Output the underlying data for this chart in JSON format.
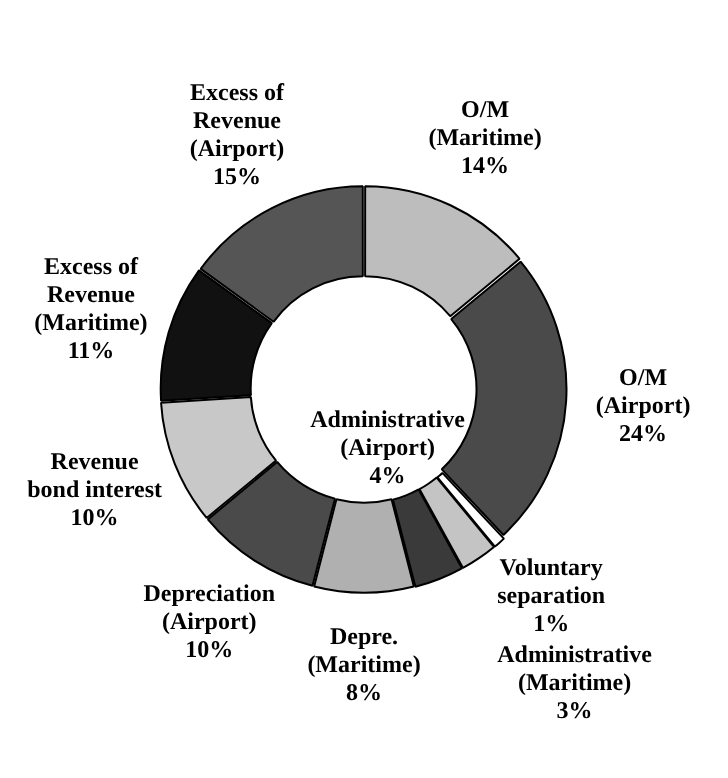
{
  "chart_data": {
    "type": "donut",
    "categories": [
      "O/M (Maritime)",
      "O/M (Airport)",
      "Voluntary separation",
      "Administrative (Maritime)",
      "Administrative (Airport)",
      "Depre. (Maritime)",
      "Depreciation (Airport)",
      "Revenue bond interest",
      "Excess of Revenue (Maritime)",
      "Excess of Revenue (Airport)"
    ],
    "values": [
      14,
      24,
      1,
      3,
      4,
      8,
      10,
      10,
      11,
      15
    ],
    "value_labels": [
      "14%",
      "24%",
      "1%",
      "3%",
      "4%",
      "8%",
      "10%",
      "10%",
      "11%",
      "15%"
    ],
    "colors": [
      "#bdbdbd",
      "#4a4a4a",
      "#ffffff",
      "#c4c4c4",
      "#3a3a3a",
      "#b0b0b0",
      "#4a4a4a",
      "#c8c8c8",
      "#111111",
      "#555555"
    ],
    "legend": false
  }
}
